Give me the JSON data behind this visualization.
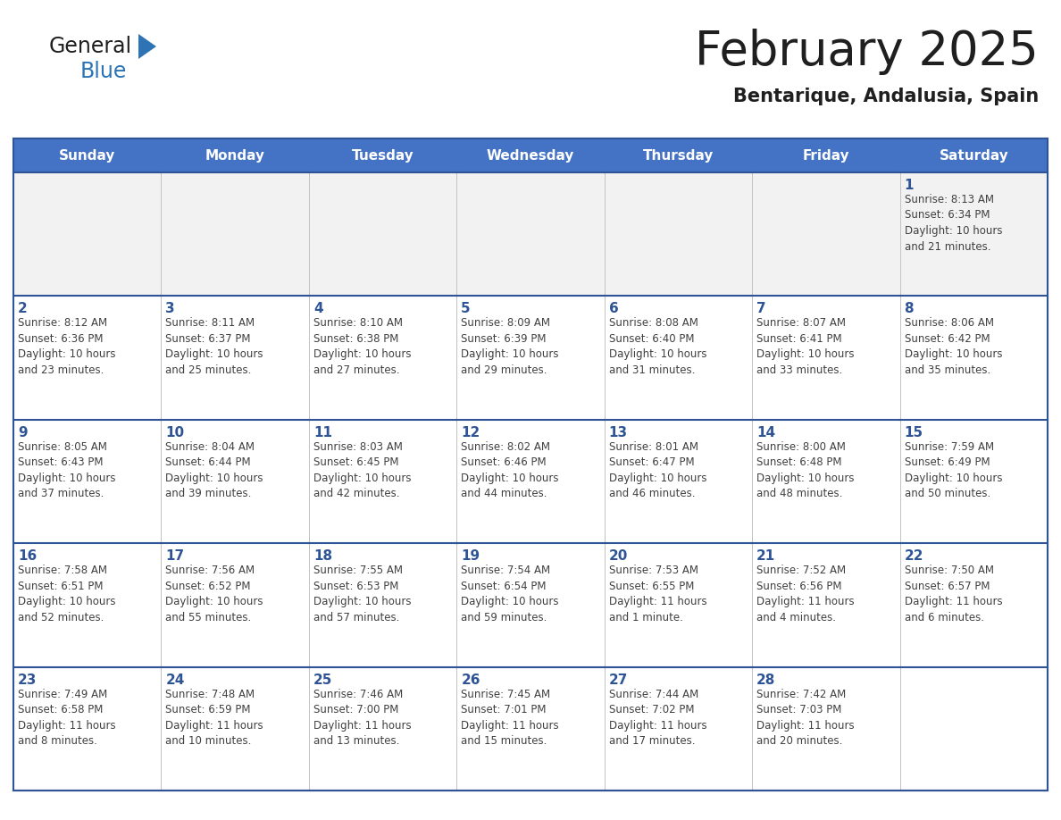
{
  "title": "February 2025",
  "subtitle": "Bentarique, Andalusia, Spain",
  "header_bg": "#4472C4",
  "header_text_color": "#FFFFFF",
  "cell_bg_white": "#FFFFFF",
  "cell_bg_gray": "#F2F2F2",
  "row_border_color": "#2F5496",
  "col_border_color": "#BFBFBF",
  "outer_border_color": "#2F5496",
  "title_color": "#1F1F1F",
  "subtitle_color": "#1F1F1F",
  "day_num_color": "#2F5496",
  "info_color": "#404040",
  "logo_general_color": "#1F1F1F",
  "logo_blue_color": "#2E74B5",
  "day_headers": [
    "Sunday",
    "Monday",
    "Tuesday",
    "Wednesday",
    "Thursday",
    "Friday",
    "Saturday"
  ],
  "weeks": [
    [
      {
        "day": null,
        "info": null
      },
      {
        "day": null,
        "info": null
      },
      {
        "day": null,
        "info": null
      },
      {
        "day": null,
        "info": null
      },
      {
        "day": null,
        "info": null
      },
      {
        "day": null,
        "info": null
      },
      {
        "day": 1,
        "info": "Sunrise: 8:13 AM\nSunset: 6:34 PM\nDaylight: 10 hours\nand 21 minutes."
      }
    ],
    [
      {
        "day": 2,
        "info": "Sunrise: 8:12 AM\nSunset: 6:36 PM\nDaylight: 10 hours\nand 23 minutes."
      },
      {
        "day": 3,
        "info": "Sunrise: 8:11 AM\nSunset: 6:37 PM\nDaylight: 10 hours\nand 25 minutes."
      },
      {
        "day": 4,
        "info": "Sunrise: 8:10 AM\nSunset: 6:38 PM\nDaylight: 10 hours\nand 27 minutes."
      },
      {
        "day": 5,
        "info": "Sunrise: 8:09 AM\nSunset: 6:39 PM\nDaylight: 10 hours\nand 29 minutes."
      },
      {
        "day": 6,
        "info": "Sunrise: 8:08 AM\nSunset: 6:40 PM\nDaylight: 10 hours\nand 31 minutes."
      },
      {
        "day": 7,
        "info": "Sunrise: 8:07 AM\nSunset: 6:41 PM\nDaylight: 10 hours\nand 33 minutes."
      },
      {
        "day": 8,
        "info": "Sunrise: 8:06 AM\nSunset: 6:42 PM\nDaylight: 10 hours\nand 35 minutes."
      }
    ],
    [
      {
        "day": 9,
        "info": "Sunrise: 8:05 AM\nSunset: 6:43 PM\nDaylight: 10 hours\nand 37 minutes."
      },
      {
        "day": 10,
        "info": "Sunrise: 8:04 AM\nSunset: 6:44 PM\nDaylight: 10 hours\nand 39 minutes."
      },
      {
        "day": 11,
        "info": "Sunrise: 8:03 AM\nSunset: 6:45 PM\nDaylight: 10 hours\nand 42 minutes."
      },
      {
        "day": 12,
        "info": "Sunrise: 8:02 AM\nSunset: 6:46 PM\nDaylight: 10 hours\nand 44 minutes."
      },
      {
        "day": 13,
        "info": "Sunrise: 8:01 AM\nSunset: 6:47 PM\nDaylight: 10 hours\nand 46 minutes."
      },
      {
        "day": 14,
        "info": "Sunrise: 8:00 AM\nSunset: 6:48 PM\nDaylight: 10 hours\nand 48 minutes."
      },
      {
        "day": 15,
        "info": "Sunrise: 7:59 AM\nSunset: 6:49 PM\nDaylight: 10 hours\nand 50 minutes."
      }
    ],
    [
      {
        "day": 16,
        "info": "Sunrise: 7:58 AM\nSunset: 6:51 PM\nDaylight: 10 hours\nand 52 minutes."
      },
      {
        "day": 17,
        "info": "Sunrise: 7:56 AM\nSunset: 6:52 PM\nDaylight: 10 hours\nand 55 minutes."
      },
      {
        "day": 18,
        "info": "Sunrise: 7:55 AM\nSunset: 6:53 PM\nDaylight: 10 hours\nand 57 minutes."
      },
      {
        "day": 19,
        "info": "Sunrise: 7:54 AM\nSunset: 6:54 PM\nDaylight: 10 hours\nand 59 minutes."
      },
      {
        "day": 20,
        "info": "Sunrise: 7:53 AM\nSunset: 6:55 PM\nDaylight: 11 hours\nand 1 minute."
      },
      {
        "day": 21,
        "info": "Sunrise: 7:52 AM\nSunset: 6:56 PM\nDaylight: 11 hours\nand 4 minutes."
      },
      {
        "day": 22,
        "info": "Sunrise: 7:50 AM\nSunset: 6:57 PM\nDaylight: 11 hours\nand 6 minutes."
      }
    ],
    [
      {
        "day": 23,
        "info": "Sunrise: 7:49 AM\nSunset: 6:58 PM\nDaylight: 11 hours\nand 8 minutes."
      },
      {
        "day": 24,
        "info": "Sunrise: 7:48 AM\nSunset: 6:59 PM\nDaylight: 11 hours\nand 10 minutes."
      },
      {
        "day": 25,
        "info": "Sunrise: 7:46 AM\nSunset: 7:00 PM\nDaylight: 11 hours\nand 13 minutes."
      },
      {
        "day": 26,
        "info": "Sunrise: 7:45 AM\nSunset: 7:01 PM\nDaylight: 11 hours\nand 15 minutes."
      },
      {
        "day": 27,
        "info": "Sunrise: 7:44 AM\nSunset: 7:02 PM\nDaylight: 11 hours\nand 17 minutes."
      },
      {
        "day": 28,
        "info": "Sunrise: 7:42 AM\nSunset: 7:03 PM\nDaylight: 11 hours\nand 20 minutes."
      },
      {
        "day": null,
        "info": null
      }
    ]
  ]
}
